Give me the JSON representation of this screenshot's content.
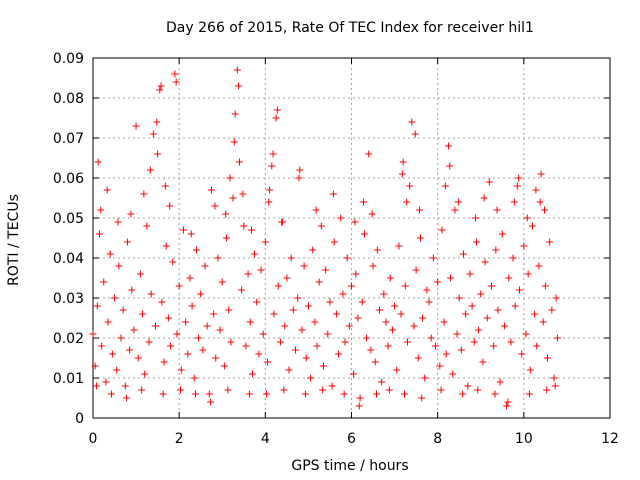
{
  "chart_data": {
    "type": "scatter",
    "title": "Day 266 of 2015, Rate Of TEC Index for receiver hil1",
    "xlabel": "GPS time / hours",
    "ylabel": "ROTI / TECUs",
    "xlim": [
      0,
      12
    ],
    "ylim": [
      0,
      0.09
    ],
    "x_ticks": [
      "0",
      "2",
      "4",
      "6",
      "8",
      "10",
      "12"
    ],
    "y_ticks": [
      "0",
      "0.01",
      "0.02",
      "0.03",
      "0.04",
      "0.05",
      "0.06",
      "0.07",
      "0.08",
      "0.09"
    ],
    "grid": true,
    "marker": "plus",
    "color": "#ff0000",
    "series": [
      {
        "name": "ROTI",
        "points": [
          [
            0.0,
            0.021
          ],
          [
            0.05,
            0.013
          ],
          [
            0.1,
            0.028
          ],
          [
            0.15,
            0.046
          ],
          [
            0.2,
            0.018
          ],
          [
            0.25,
            0.034
          ],
          [
            0.3,
            0.009
          ],
          [
            0.35,
            0.024
          ],
          [
            0.4,
            0.041
          ],
          [
            0.45,
            0.016
          ],
          [
            0.5,
            0.03
          ],
          [
            0.55,
            0.012
          ],
          [
            0.6,
            0.038
          ],
          [
            0.65,
            0.02
          ],
          [
            0.7,
            0.027
          ],
          [
            0.75,
            0.008
          ],
          [
            0.8,
            0.044
          ],
          [
            0.85,
            0.017
          ],
          [
            0.9,
            0.032
          ],
          [
            0.95,
            0.022
          ],
          [
            1.0,
            0.073
          ],
          [
            1.05,
            0.015
          ],
          [
            1.1,
            0.036
          ],
          [
            1.15,
            0.026
          ],
          [
            1.2,
            0.011
          ],
          [
            1.25,
            0.048
          ],
          [
            1.3,
            0.019
          ],
          [
            1.35,
            0.031
          ],
          [
            1.4,
            0.071
          ],
          [
            1.45,
            0.023
          ],
          [
            1.5,
            0.066
          ],
          [
            1.55,
            0.082
          ],
          [
            1.6,
            0.029
          ],
          [
            1.65,
            0.014
          ],
          [
            1.7,
            0.043
          ],
          [
            1.75,
            0.025
          ],
          [
            1.8,
            0.018
          ],
          [
            1.85,
            0.039
          ],
          [
            1.9,
            0.086
          ],
          [
            1.95,
            0.021
          ],
          [
            2.0,
            0.033
          ],
          [
            2.05,
            0.012
          ],
          [
            2.1,
            0.047
          ],
          [
            2.15,
            0.024
          ],
          [
            2.2,
            0.016
          ],
          [
            2.25,
            0.035
          ],
          [
            2.3,
            0.028
          ],
          [
            2.35,
            0.01
          ],
          [
            2.4,
            0.042
          ],
          [
            2.45,
            0.02
          ],
          [
            2.5,
            0.031
          ],
          [
            2.55,
            0.017
          ],
          [
            2.6,
            0.038
          ],
          [
            2.65,
            0.023
          ],
          [
            2.7,
            0.006
          ],
          [
            2.75,
            0.057
          ],
          [
            2.8,
            0.026
          ],
          [
            2.85,
            0.015
          ],
          [
            2.9,
            0.04
          ],
          [
            2.95,
            0.022
          ],
          [
            3.0,
            0.034
          ],
          [
            3.05,
            0.013
          ],
          [
            3.1,
            0.045
          ],
          [
            3.15,
            0.027
          ],
          [
            3.2,
            0.019
          ],
          [
            3.25,
            0.055
          ],
          [
            3.3,
            0.076
          ],
          [
            3.35,
            0.087
          ],
          [
            3.4,
            0.064
          ],
          [
            3.45,
            0.032
          ],
          [
            3.5,
            0.048
          ],
          [
            3.55,
            0.018
          ],
          [
            3.6,
            0.036
          ],
          [
            3.65,
            0.024
          ],
          [
            3.7,
            0.011
          ],
          [
            3.75,
            0.041
          ],
          [
            3.8,
            0.029
          ],
          [
            3.85,
            0.016
          ],
          [
            3.9,
            0.037
          ],
          [
            3.95,
            0.021
          ],
          [
            4.0,
            0.044
          ],
          [
            4.05,
            0.014
          ],
          [
            4.1,
            0.057
          ],
          [
            4.15,
            0.063
          ],
          [
            4.2,
            0.026
          ],
          [
            4.25,
            0.075
          ],
          [
            4.3,
            0.033
          ],
          [
            4.35,
            0.019
          ],
          [
            4.4,
            0.049
          ],
          [
            4.45,
            0.023
          ],
          [
            4.5,
            0.035
          ],
          [
            4.55,
            0.012
          ],
          [
            4.6,
            0.04
          ],
          [
            4.65,
            0.027
          ],
          [
            4.7,
            0.017
          ],
          [
            4.75,
            0.03
          ],
          [
            4.8,
            0.062
          ],
          [
            4.85,
            0.022
          ],
          [
            4.9,
            0.038
          ],
          [
            4.95,
            0.015
          ],
          [
            5.0,
            0.028
          ],
          [
            5.05,
            0.01
          ],
          [
            5.1,
            0.042
          ],
          [
            5.15,
            0.024
          ],
          [
            5.2,
            0.018
          ],
          [
            5.25,
            0.034
          ],
          [
            5.3,
            0.048
          ],
          [
            5.35,
            0.013
          ],
          [
            5.4,
            0.037
          ],
          [
            5.45,
            0.021
          ],
          [
            5.5,
            0.029
          ],
          [
            5.55,
            0.008
          ],
          [
            5.6,
            0.044
          ],
          [
            5.65,
            0.026
          ],
          [
            5.7,
            0.016
          ],
          [
            5.75,
            0.05
          ],
          [
            5.8,
            0.031
          ],
          [
            5.85,
            0.019
          ],
          [
            5.9,
            0.04
          ],
          [
            5.95,
            0.023
          ],
          [
            6.0,
            0.033
          ],
          [
            6.05,
            0.011
          ],
          [
            6.1,
            0.036
          ],
          [
            6.15,
            0.025
          ],
          [
            6.2,
            0.005
          ],
          [
            6.25,
            0.029
          ],
          [
            6.3,
            0.046
          ],
          [
            6.35,
            0.02
          ],
          [
            6.4,
            0.066
          ],
          [
            6.45,
            0.017
          ],
          [
            6.5,
            0.038
          ],
          [
            6.55,
            0.014
          ],
          [
            6.6,
            0.042
          ],
          [
            6.65,
            0.027
          ],
          [
            6.7,
            0.009
          ],
          [
            6.75,
            0.031
          ],
          [
            6.8,
            0.024
          ],
          [
            6.85,
            0.018
          ],
          [
            6.9,
            0.035
          ],
          [
            6.95,
            0.022
          ],
          [
            7.0,
            0.028
          ],
          [
            7.05,
            0.012
          ],
          [
            7.1,
            0.043
          ],
          [
            7.15,
            0.026
          ],
          [
            7.2,
            0.064
          ],
          [
            7.25,
            0.033
          ],
          [
            7.3,
            0.019
          ],
          [
            7.35,
            0.058
          ],
          [
            7.4,
            0.074
          ],
          [
            7.45,
            0.023
          ],
          [
            7.5,
            0.037
          ],
          [
            7.55,
            0.015
          ],
          [
            7.6,
            0.045
          ],
          [
            7.65,
            0.025
          ],
          [
            7.7,
            0.01
          ],
          [
            7.75,
            0.032
          ],
          [
            7.8,
            0.029
          ],
          [
            7.85,
            0.02
          ],
          [
            7.9,
            0.04
          ],
          [
            7.95,
            0.018
          ],
          [
            8.0,
            0.034
          ],
          [
            8.05,
            0.013
          ],
          [
            8.1,
            0.047
          ],
          [
            8.15,
            0.024
          ],
          [
            8.2,
            0.016
          ],
          [
            8.25,
            0.068
          ],
          [
            8.3,
            0.035
          ],
          [
            8.35,
            0.011
          ],
          [
            8.4,
            0.052
          ],
          [
            8.45,
            0.021
          ],
          [
            8.5,
            0.03
          ],
          [
            8.55,
            0.017
          ],
          [
            8.6,
            0.041
          ],
          [
            8.65,
            0.026
          ],
          [
            8.7,
            0.008
          ],
          [
            8.75,
            0.036
          ],
          [
            8.8,
            0.028
          ],
          [
            8.85,
            0.019
          ],
          [
            8.9,
            0.044
          ],
          [
            8.95,
            0.022
          ],
          [
            9.0,
            0.031
          ],
          [
            9.05,
            0.014
          ],
          [
            9.1,
            0.039
          ],
          [
            9.15,
            0.025
          ],
          [
            9.2,
            0.059
          ],
          [
            9.25,
            0.033
          ],
          [
            9.3,
            0.018
          ],
          [
            9.35,
            0.042
          ],
          [
            9.4,
            0.027
          ],
          [
            9.45,
            0.009
          ],
          [
            9.5,
            0.046
          ],
          [
            9.55,
            0.023
          ],
          [
            9.6,
            0.003
          ],
          [
            9.65,
            0.035
          ],
          [
            9.7,
            0.019
          ],
          [
            9.75,
            0.04
          ],
          [
            9.8,
            0.028
          ],
          [
            9.85,
            0.058
          ],
          [
            9.9,
            0.032
          ],
          [
            9.95,
            0.016
          ],
          [
            10.0,
            0.043
          ],
          [
            10.05,
            0.021
          ],
          [
            10.1,
            0.036
          ],
          [
            10.15,
            0.012
          ],
          [
            10.2,
            0.048
          ],
          [
            10.25,
            0.026
          ],
          [
            10.3,
            0.018
          ],
          [
            10.35,
            0.038
          ],
          [
            10.4,
            0.061
          ],
          [
            10.45,
            0.024
          ],
          [
            10.5,
            0.033
          ],
          [
            10.55,
            0.015
          ],
          [
            10.6,
            0.044
          ],
          [
            10.65,
            0.027
          ],
          [
            10.7,
            0.01
          ],
          [
            10.75,
            0.03
          ],
          [
            10.78,
            0.02
          ],
          [
            0.12,
            0.064
          ],
          [
            0.18,
            0.052
          ],
          [
            0.33,
            0.057
          ],
          [
            0.58,
            0.049
          ],
          [
            0.88,
            0.051
          ],
          [
            1.18,
            0.056
          ],
          [
            1.33,
            0.062
          ],
          [
            1.48,
            0.074
          ],
          [
            1.58,
            0.083
          ],
          [
            1.68,
            0.058
          ],
          [
            1.78,
            0.053
          ],
          [
            1.93,
            0.084
          ],
          [
            2.28,
            0.046
          ],
          [
            2.83,
            0.053
          ],
          [
            3.08,
            0.051
          ],
          [
            3.18,
            0.06
          ],
          [
            3.28,
            0.069
          ],
          [
            3.38,
            0.083
          ],
          [
            3.48,
            0.056
          ],
          [
            3.68,
            0.047
          ],
          [
            4.08,
            0.054
          ],
          [
            4.18,
            0.066
          ],
          [
            4.28,
            0.077
          ],
          [
            4.38,
            0.049
          ],
          [
            4.78,
            0.06
          ],
          [
            5.18,
            0.052
          ],
          [
            5.58,
            0.056
          ],
          [
            6.08,
            0.049
          ],
          [
            6.28,
            0.054
          ],
          [
            6.48,
            0.051
          ],
          [
            7.18,
            0.061
          ],
          [
            7.28,
            0.054
          ],
          [
            7.48,
            0.071
          ],
          [
            7.58,
            0.052
          ],
          [
            8.18,
            0.058
          ],
          [
            8.28,
            0.063
          ],
          [
            8.48,
            0.054
          ],
          [
            8.88,
            0.05
          ],
          [
            9.08,
            0.055
          ],
          [
            9.38,
            0.052
          ],
          [
            9.78,
            0.054
          ],
          [
            9.88,
            0.06
          ],
          [
            10.08,
            0.05
          ],
          [
            10.28,
            0.057
          ],
          [
            10.38,
            0.054
          ],
          [
            10.48,
            0.052
          ],
          [
            0.08,
            0.008
          ],
          [
            0.43,
            0.006
          ],
          [
            0.78,
            0.005
          ],
          [
            1.13,
            0.007
          ],
          [
            1.63,
            0.006
          ],
          [
            2.03,
            0.007
          ],
          [
            2.38,
            0.006
          ],
          [
            2.73,
            0.004
          ],
          [
            3.13,
            0.007
          ],
          [
            3.63,
            0.006
          ],
          [
            4.03,
            0.006
          ],
          [
            4.43,
            0.007
          ],
          [
            4.93,
            0.006
          ],
          [
            5.33,
            0.007
          ],
          [
            5.83,
            0.006
          ],
          [
            6.18,
            0.003
          ],
          [
            6.58,
            0.006
          ],
          [
            6.88,
            0.007
          ],
          [
            7.23,
            0.006
          ],
          [
            7.63,
            0.005
          ],
          [
            8.08,
            0.007
          ],
          [
            8.58,
            0.006
          ],
          [
            8.93,
            0.007
          ],
          [
            9.33,
            0.006
          ],
          [
            9.63,
            0.004
          ],
          [
            10.13,
            0.006
          ],
          [
            10.53,
            0.007
          ],
          [
            10.73,
            0.008
          ]
        ]
      }
    ]
  }
}
